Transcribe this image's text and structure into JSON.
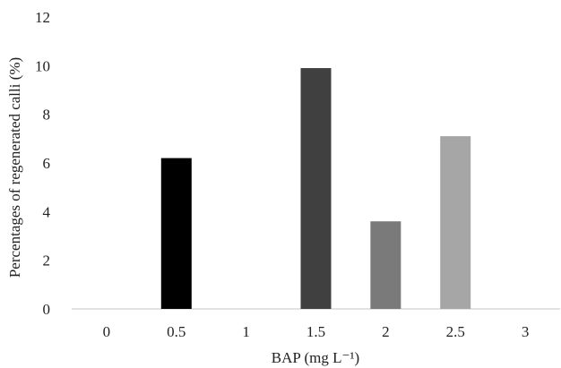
{
  "chart_data": {
    "type": "bar",
    "title": "",
    "xlabel": "BAP (mg L⁻¹)",
    "ylabel": "Percentages of regenerated calli  (%)",
    "categories": [
      "0",
      "0.5",
      "1",
      "1.5",
      "2",
      "2.5",
      "3"
    ],
    "values": [
      0,
      6.2,
      0,
      9.9,
      3.6,
      7.1,
      0
    ],
    "colors": [
      "#000000",
      "#000000",
      "#1f1f1f",
      "#404040",
      "#7a7a7a",
      "#a6a6a6",
      "#c8c8c8"
    ],
    "ylim": [
      0,
      12
    ],
    "yticks": [
      "0",
      "2",
      "4",
      "6",
      "8",
      "10",
      "12"
    ],
    "grid": false,
    "legend": "none"
  }
}
